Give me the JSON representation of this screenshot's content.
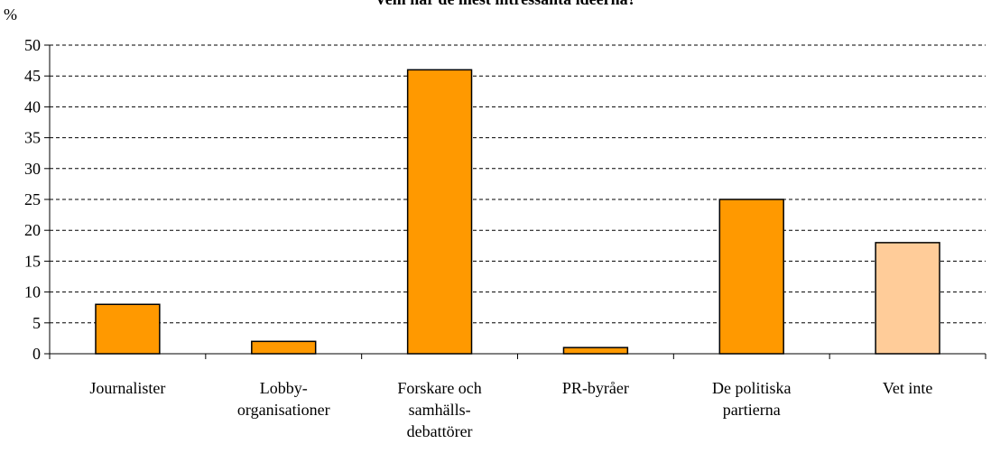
{
  "chart_data": {
    "type": "bar",
    "title": "Vem har de mest intressanta idéerna?",
    "y_label": "%",
    "categories": [
      [
        "Journalister"
      ],
      [
        "Lobby-",
        "organisationer"
      ],
      [
        "Forskare och",
        "samhälls-",
        "debattörer"
      ],
      [
        "PR-byråer"
      ],
      [
        "De politiska",
        "partierna"
      ],
      [
        "Vet inte"
      ]
    ],
    "values": [
      8,
      2,
      46,
      1,
      25,
      18
    ],
    "colors": [
      "#ff9900",
      "#ff9900",
      "#ff9900",
      "#ff9900",
      "#ff9900",
      "#ffcc99"
    ],
    "ylim": [
      0,
      50
    ],
    "yticks": [
      0,
      5,
      10,
      15,
      20,
      25,
      30,
      35,
      40,
      45,
      50
    ],
    "grid": true
  }
}
